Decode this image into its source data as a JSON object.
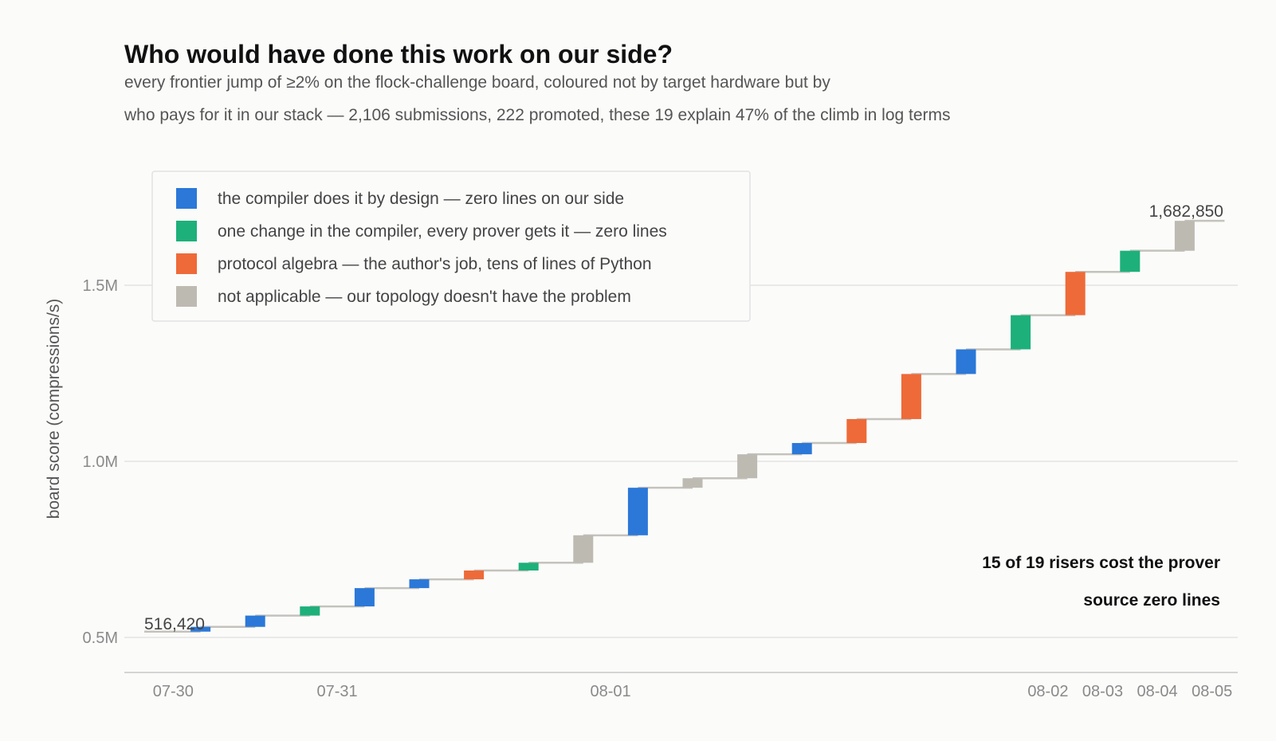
{
  "chart_data": {
    "type": "bar",
    "subtype": "waterfall-step",
    "title": "Who would have done this work on our side?",
    "subtitle": [
      "every frontier jump of ≥2% on the flock-challenge board, coloured not by target hardware but by",
      "who pays for it in our stack — 2,106 submissions, 222 promoted, these 19 explain 47% of the climb in log terms"
    ],
    "ylabel": "board score (compressions/s)",
    "ylim": [
      400000,
      1800000
    ],
    "yticks": [
      {
        "value": 500000,
        "label": "0.5M"
      },
      {
        "value": 1000000,
        "label": "1.0M"
      },
      {
        "value": 1500000,
        "label": "1.5M"
      }
    ],
    "xticks": [
      {
        "position": 0.5,
        "label": "07-30"
      },
      {
        "position": 3.5,
        "label": "07-31"
      },
      {
        "position": 8.5,
        "label": "08-01"
      },
      {
        "position": 16.5,
        "label": "08-02"
      },
      {
        "position": 17.5,
        "label": "08-03"
      },
      {
        "position": 18.5,
        "label": "08-04"
      },
      {
        "position": 19.5,
        "label": "08-05"
      }
    ],
    "grid": true,
    "legend_position": "top-left",
    "categories": [
      {
        "key": "compiler",
        "label": "the compiler does it by design — zero lines on our side",
        "color": "#2b78d8"
      },
      {
        "key": "onechange",
        "label": "one change in the compiler, every prover gets it — zero lines",
        "color": "#1db07a"
      },
      {
        "key": "protocol",
        "label": "protocol algebra — the author's job, tens of lines of Python",
        "color": "#ee6a38"
      },
      {
        "key": "na",
        "label": "not applicable — our topology doesn't have the problem",
        "color": "#bdbab2"
      }
    ],
    "start_value": 516420,
    "start_label": "516,420",
    "end_value": 1682850,
    "end_label": "1,682,850",
    "risers": [
      {
        "from": 516420,
        "to": 530000,
        "category": "compiler"
      },
      {
        "from": 530000,
        "to": 562000,
        "category": "compiler"
      },
      {
        "from": 562000,
        "to": 588000,
        "category": "onechange"
      },
      {
        "from": 588000,
        "to": 640000,
        "category": "compiler"
      },
      {
        "from": 640000,
        "to": 665000,
        "category": "compiler"
      },
      {
        "from": 665000,
        "to": 690000,
        "category": "protocol"
      },
      {
        "from": 690000,
        "to": 712000,
        "category": "onechange"
      },
      {
        "from": 712000,
        "to": 790000,
        "category": "na"
      },
      {
        "from": 790000,
        "to": 925000,
        "category": "compiler"
      },
      {
        "from": 925000,
        "to": 952000,
        "category": "na"
      },
      {
        "from": 952000,
        "to": 1020000,
        "category": "na"
      },
      {
        "from": 1020000,
        "to": 1052000,
        "category": "compiler"
      },
      {
        "from": 1052000,
        "to": 1120000,
        "category": "protocol"
      },
      {
        "from": 1120000,
        "to": 1248000,
        "category": "protocol"
      },
      {
        "from": 1248000,
        "to": 1318000,
        "category": "compiler"
      },
      {
        "from": 1318000,
        "to": 1415000,
        "category": "onechange"
      },
      {
        "from": 1415000,
        "to": 1538000,
        "category": "protocol"
      },
      {
        "from": 1538000,
        "to": 1598000,
        "category": "onechange"
      },
      {
        "from": 1598000,
        "to": 1682850,
        "category": "na"
      }
    ],
    "annotation": [
      "15 of 19 risers cost the prover",
      "source zero lines"
    ]
  }
}
